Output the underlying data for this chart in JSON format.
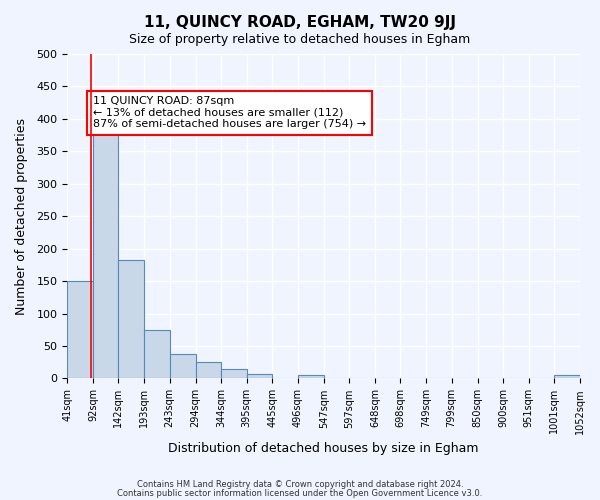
{
  "title": "11, QUINCY ROAD, EGHAM, TW20 9JJ",
  "subtitle": "Size of property relative to detached houses in Egham",
  "xlabel": "Distribution of detached houses by size in Egham",
  "ylabel": "Number of detached properties",
  "bar_color": "#c8d8e8",
  "bar_edge_color": "#5588bb",
  "bar_edge_width": 0.8,
  "background_color": "#f0f4ff",
  "grid_color": "#ffffff",
  "red_line_x": 87,
  "annotation_box_text": "11 QUINCY ROAD: 87sqm\n← 13% of detached houses are smaller (112)\n87% of semi-detached houses are larger (754) →",
  "bin_edges": [
    41,
    92,
    142,
    193,
    243,
    294,
    344,
    395,
    445,
    496,
    547,
    597,
    648,
    698,
    749,
    799,
    850,
    900,
    951,
    1001,
    1052
  ],
  "bar_heights": [
    150,
    380,
    183,
    75,
    38,
    25,
    15,
    7,
    0,
    5,
    0,
    0,
    0,
    0,
    0,
    0,
    0,
    0,
    0,
    5
  ],
  "ylim": [
    0,
    500
  ],
  "yticks": [
    0,
    50,
    100,
    150,
    200,
    250,
    300,
    350,
    400,
    450,
    500
  ],
  "tick_labels": [
    "41sqm",
    "92sqm",
    "142sqm",
    "193sqm",
    "243sqm",
    "294sqm",
    "344sqm",
    "395sqm",
    "445sqm",
    "496sqm",
    "547sqm",
    "597sqm",
    "648sqm",
    "698sqm",
    "749sqm",
    "799sqm",
    "850sqm",
    "900sqm",
    "951sqm",
    "1001sqm",
    "1052sqm"
  ],
  "footer_line1": "Contains HM Land Registry data © Crown copyright and database right 2024.",
  "footer_line2": "Contains public sector information licensed under the Open Government Licence v3.0."
}
